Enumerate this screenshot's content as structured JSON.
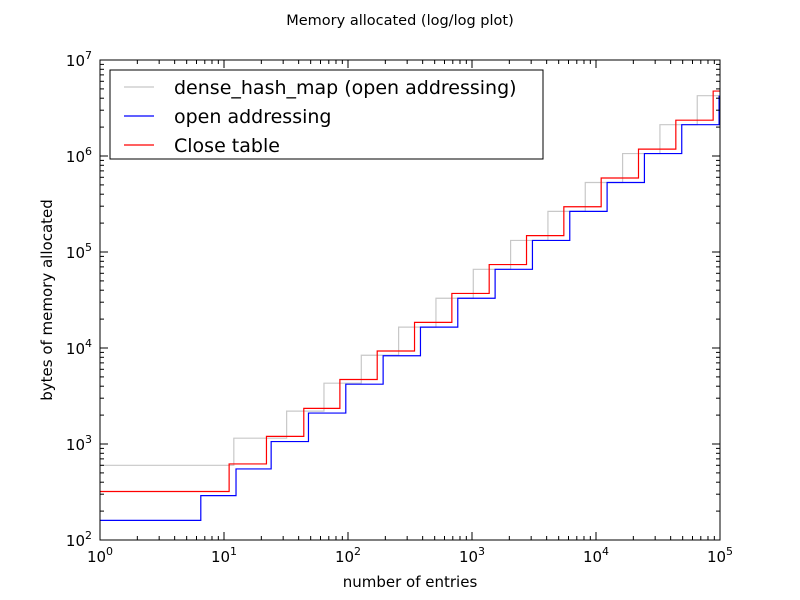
{
  "chart_data": {
    "type": "line",
    "title": "Memory allocated (log/log plot)",
    "xlabel": "number of entries",
    "ylabel": "bytes of memory allocated",
    "xscale": "log",
    "yscale": "log",
    "xlim": [
      1,
      100000
    ],
    "ylim": [
      100,
      10000000
    ],
    "x_ticks": [
      {
        "value": 1,
        "base": "10",
        "exp": "0"
      },
      {
        "value": 10,
        "base": "10",
        "exp": "1"
      },
      {
        "value": 100,
        "base": "10",
        "exp": "2"
      },
      {
        "value": 1000,
        "base": "10",
        "exp": "3"
      },
      {
        "value": 10000,
        "base": "10",
        "exp": "4"
      },
      {
        "value": 100000,
        "base": "10",
        "exp": "5"
      }
    ],
    "y_ticks": [
      {
        "value": 100,
        "base": "10",
        "exp": "2"
      },
      {
        "value": 1000,
        "base": "10",
        "exp": "3"
      },
      {
        "value": 10000,
        "base": "10",
        "exp": "4"
      },
      {
        "value": 100000,
        "base": "10",
        "exp": "5"
      },
      {
        "value": 1000000,
        "base": "10",
        "exp": "6"
      },
      {
        "value": 10000000,
        "base": "10",
        "exp": "7"
      }
    ],
    "grid": false,
    "legend_position": "top-left",
    "series": [
      {
        "name": "dense_hash_map (open addressing)",
        "color": "#c8c8c8",
        "drawstyle": "steps-post",
        "points": [
          [
            1,
            600
          ],
          [
            12,
            1150
          ],
          [
            32,
            2200
          ],
          [
            64,
            4300
          ],
          [
            128,
            8400
          ],
          [
            256,
            16500
          ],
          [
            512,
            33000
          ],
          [
            1024,
            66000
          ],
          [
            2048,
            132000
          ],
          [
            4096,
            265000
          ],
          [
            8192,
            530000
          ],
          [
            16384,
            1060000
          ],
          [
            32768,
            2120000
          ],
          [
            65536,
            4250000
          ],
          [
            100000,
            4250000
          ]
        ]
      },
      {
        "name": "open addressing",
        "color": "#0000ff",
        "drawstyle": "steps-post",
        "points": [
          [
            1,
            160
          ],
          [
            6.5,
            290
          ],
          [
            12.5,
            550
          ],
          [
            24,
            1060
          ],
          [
            48,
            2100
          ],
          [
            96,
            4200
          ],
          [
            192,
            8300
          ],
          [
            384,
            16500
          ],
          [
            768,
            33000
          ],
          [
            1536,
            66000
          ],
          [
            3072,
            132000
          ],
          [
            6144,
            265000
          ],
          [
            12288,
            530000
          ],
          [
            24576,
            1060000
          ],
          [
            49152,
            2120000
          ],
          [
            98304,
            4200000
          ],
          [
            100000,
            4200000
          ]
        ]
      },
      {
        "name": "Close table",
        "color": "#ff0000",
        "drawstyle": "steps-post",
        "points": [
          [
            1,
            320
          ],
          [
            11,
            620
          ],
          [
            22,
            1200
          ],
          [
            44,
            2350
          ],
          [
            86,
            4700
          ],
          [
            172,
            9300
          ],
          [
            344,
            18500
          ],
          [
            688,
            37000
          ],
          [
            1376,
            74000
          ],
          [
            2752,
            148000
          ],
          [
            5504,
            296000
          ],
          [
            11008,
            590000
          ],
          [
            22016,
            1180000
          ],
          [
            44032,
            2360000
          ],
          [
            88064,
            4750000
          ],
          [
            100000,
            4750000
          ]
        ]
      }
    ]
  }
}
